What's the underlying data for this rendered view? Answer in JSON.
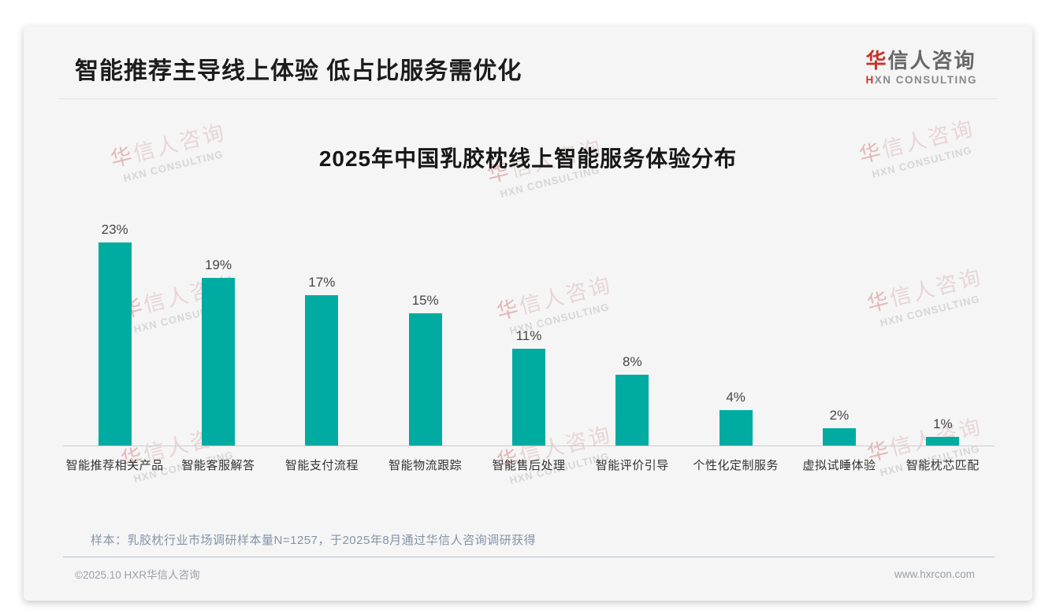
{
  "header": {
    "title": "智能推荐主导线上体验 低占比服务需优化"
  },
  "logo": {
    "cn_accent": "华",
    "cn_rest": "信人咨询",
    "en_accent": "H",
    "en_rest": "XN CONSULTING"
  },
  "watermark": {
    "cn": "华信人咨询",
    "en": "HXN CONSULTING"
  },
  "chart_data": {
    "type": "bar",
    "title": "2025年中国乳胶枕线上智能服务体验分布",
    "categories": [
      "智能推荐相关产品",
      "智能客服解答",
      "智能支付流程",
      "智能物流跟踪",
      "智能售后处理",
      "智能评价引导",
      "个性化定制服务",
      "虚拟试睡体验",
      "智能枕芯匹配"
    ],
    "values": [
      23,
      19,
      17,
      15,
      11,
      8,
      4,
      2,
      1
    ],
    "unit": "%",
    "bar_color": "#00aca1",
    "ylim": [
      0,
      25
    ],
    "grid": false,
    "legend": false,
    "value_labels": true,
    "xlabel": "",
    "ylabel": ""
  },
  "footnote": "样本：乳胶枕行业市场调研样本量N=1257，于2025年8月通过华信人咨询调研获得",
  "footer": {
    "copyright": "©2025.10 HXR华信人咨询",
    "website": "www.hxrcon.com"
  }
}
